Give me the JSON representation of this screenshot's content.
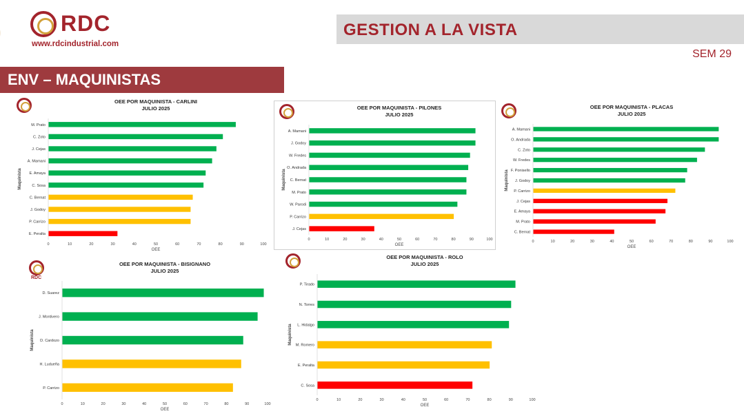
{
  "header": {
    "brand": "RDC",
    "url": "www.rdcindustrial.com",
    "banner_title": "GESTION A LA VISTA",
    "week": "SEM 29",
    "section_title": "ENV – MAQUINISTAS"
  },
  "colors": {
    "green": "#00b050",
    "yellow": "#ffc000",
    "red": "#ff0000",
    "brand": "#a3242c",
    "section_bg": "#9e3a3e",
    "banner_bg": "#d9d9d9"
  },
  "mini_logo_text": "RDC",
  "chart_data": [
    {
      "id": "carlini",
      "type": "bar",
      "orientation": "horizontal",
      "title": "OEE POR MAQUINISTA - CARLINI",
      "subtitle": "JULIO 2025",
      "xlabel": "OEE",
      "ylabel": "Maquinista",
      "xlim": [
        0,
        100
      ],
      "xticks": [
        0,
        10,
        20,
        30,
        40,
        50,
        60,
        70,
        80,
        90,
        100
      ],
      "categories": [
        "M. Prato",
        "C. Zoto",
        "J. Cejas",
        "A. Mamani",
        "E. Amaya",
        "C. Sosa",
        "C. Bernat",
        "J. Godoy",
        "P. Carrizo",
        "E. Peralta"
      ],
      "values": [
        87,
        81,
        78,
        76,
        73,
        72,
        67,
        66,
        66,
        32
      ],
      "colors": [
        "green",
        "green",
        "green",
        "green",
        "green",
        "green",
        "yellow",
        "yellow",
        "yellow",
        "red"
      ]
    },
    {
      "id": "pilones",
      "type": "bar",
      "orientation": "horizontal",
      "title": "OEE POR MAQUINISTA - PILONES",
      "subtitle": "JULIO 2025",
      "xlabel": "OEE",
      "ylabel": "Maquinista",
      "xlim": [
        0,
        100
      ],
      "xticks": [
        0,
        10,
        20,
        30,
        40,
        50,
        60,
        70,
        80,
        90,
        100
      ],
      "categories": [
        "A. Mamani",
        "J. Godoy",
        "W. Fredes",
        "O. Andrada",
        "C. Bernat",
        "M. Prato",
        "W. Parodi",
        "P. Carrizo",
        "J. Cejas"
      ],
      "values": [
        92,
        92,
        89,
        88,
        87,
        87,
        82,
        80,
        36
      ],
      "colors": [
        "green",
        "green",
        "green",
        "green",
        "green",
        "green",
        "green",
        "yellow",
        "red"
      ]
    },
    {
      "id": "placas",
      "type": "bar",
      "orientation": "horizontal",
      "title": "OEE POR MAQUINISTA - PLACAS",
      "subtitle": "JULIO 2025",
      "xlabel": "OEE",
      "ylabel": "Maquinista",
      "xlim": [
        0,
        100
      ],
      "xticks": [
        0,
        10,
        20,
        30,
        40,
        50,
        60,
        70,
        80,
        90,
        100
      ],
      "categories": [
        "A. Mamani",
        "O. Andrada",
        "C. Zoto",
        "W. Fredes",
        "F. Ponisello",
        "J. Godoy",
        "P. Carrizo",
        "J. Cejas",
        "E. Amaya",
        "M. Prato",
        "C. Bernat"
      ],
      "values": [
        94,
        94,
        87,
        83,
        78,
        77,
        72,
        68,
        67,
        62,
        41
      ],
      "colors": [
        "green",
        "green",
        "green",
        "green",
        "green",
        "green",
        "yellow",
        "red",
        "red",
        "red",
        "red"
      ]
    },
    {
      "id": "bisignano",
      "type": "bar",
      "orientation": "horizontal",
      "title": "OEE POR MAQUINISTA - BISIGNANO",
      "subtitle": "JULIO 2025",
      "xlabel": "OEE",
      "ylabel": "Maquinista",
      "xlim": [
        0,
        100
      ],
      "xticks": [
        0,
        10,
        20,
        30,
        40,
        50,
        60,
        70,
        80,
        90,
        100
      ],
      "categories": [
        "D. Suarez",
        "J. Montivero",
        "D. Cardozo",
        "H. Ludueña",
        "P. Carrizo"
      ],
      "values": [
        98,
        95,
        88,
        87,
        83
      ],
      "colors": [
        "green",
        "green",
        "green",
        "yellow",
        "yellow"
      ]
    },
    {
      "id": "rolo",
      "type": "bar",
      "orientation": "horizontal",
      "title": "OEE POR MAQUINISTA - ROLO",
      "subtitle": "JULIO 2025",
      "xlabel": "OEE",
      "ylabel": "Maquinista",
      "xlim": [
        0,
        100
      ],
      "xticks": [
        0,
        10,
        20,
        30,
        40,
        50,
        60,
        70,
        80,
        90,
        100
      ],
      "categories": [
        "P. Tirado",
        "N. Torres",
        "L. Hidalgo",
        "M. Romero",
        "E. Peralta",
        "C. Sosa"
      ],
      "values": [
        92,
        90,
        89,
        81,
        80,
        72
      ],
      "colors": [
        "green",
        "green",
        "green",
        "yellow",
        "yellow",
        "red"
      ]
    }
  ]
}
